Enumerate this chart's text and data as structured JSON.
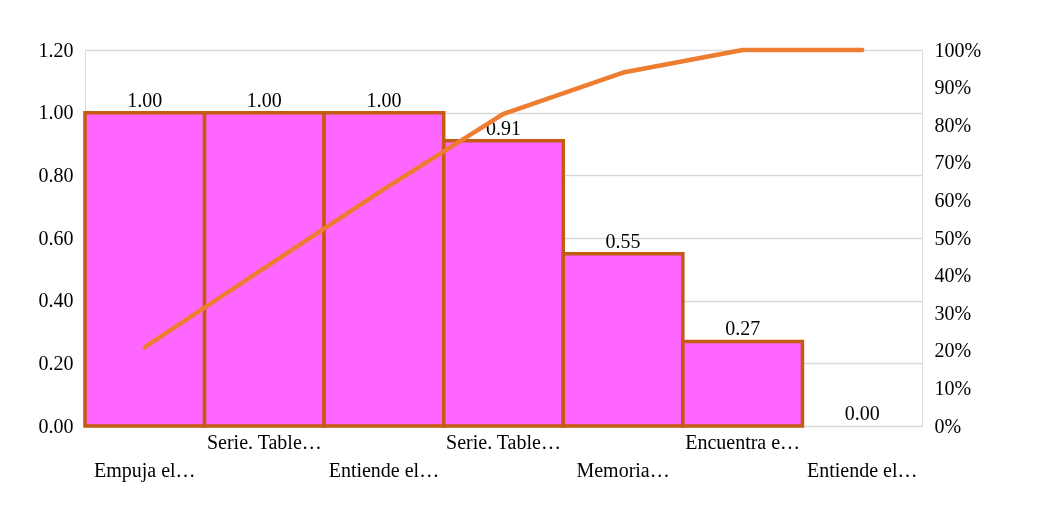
{
  "chart_data": {
    "type": "bar",
    "categories": [
      "Empuja el…",
      "Serie. Table…",
      "Entiende el…",
      "Serie. Table…",
      "Memoria…",
      "Encuentra e…",
      "Entiende el…"
    ],
    "series": [
      {
        "type": "bar",
        "color": "#ff66ff",
        "values": [
          1.0,
          1.0,
          1.0,
          0.91,
          0.55,
          0.27,
          0.0
        ],
        "value_labels": [
          "1.00",
          "1.00",
          "1.00",
          "0.91",
          "0.55",
          "0.27",
          "0.00"
        ]
      },
      {
        "type": "line",
        "axis": "y2",
        "color": "#ed7d31",
        "values": [
          21,
          42,
          63,
          83,
          94,
          100,
          100
        ]
      }
    ],
    "ylim": [
      0,
      1.2
    ],
    "yticks": [
      {
        "value": 0,
        "label": "0.00"
      },
      {
        "value": 0.2,
        "label": "0.20"
      },
      {
        "value": 0.4,
        "label": "0.40"
      },
      {
        "value": 0.6,
        "label": "0.60"
      },
      {
        "value": 0.8,
        "label": "0.80"
      },
      {
        "value": 1.0,
        "label": "1.00"
      },
      {
        "value": 1.2,
        "label": "1.20"
      }
    ],
    "y2lim": [
      0,
      100
    ],
    "y2ticks": [
      {
        "value": 0,
        "label": "0%"
      },
      {
        "value": 10,
        "label": "10%"
      },
      {
        "value": 20,
        "label": "20%"
      },
      {
        "value": 30,
        "label": "30%"
      },
      {
        "value": 40,
        "label": "40%"
      },
      {
        "value": 50,
        "label": "50%"
      },
      {
        "value": 60,
        "label": "60%"
      },
      {
        "value": 70,
        "label": "70%"
      },
      {
        "value": 80,
        "label": "80%"
      },
      {
        "value": 90,
        "label": "90%"
      },
      {
        "value": 100,
        "label": "100%"
      }
    ],
    "grid": "y",
    "marker": "none"
  }
}
